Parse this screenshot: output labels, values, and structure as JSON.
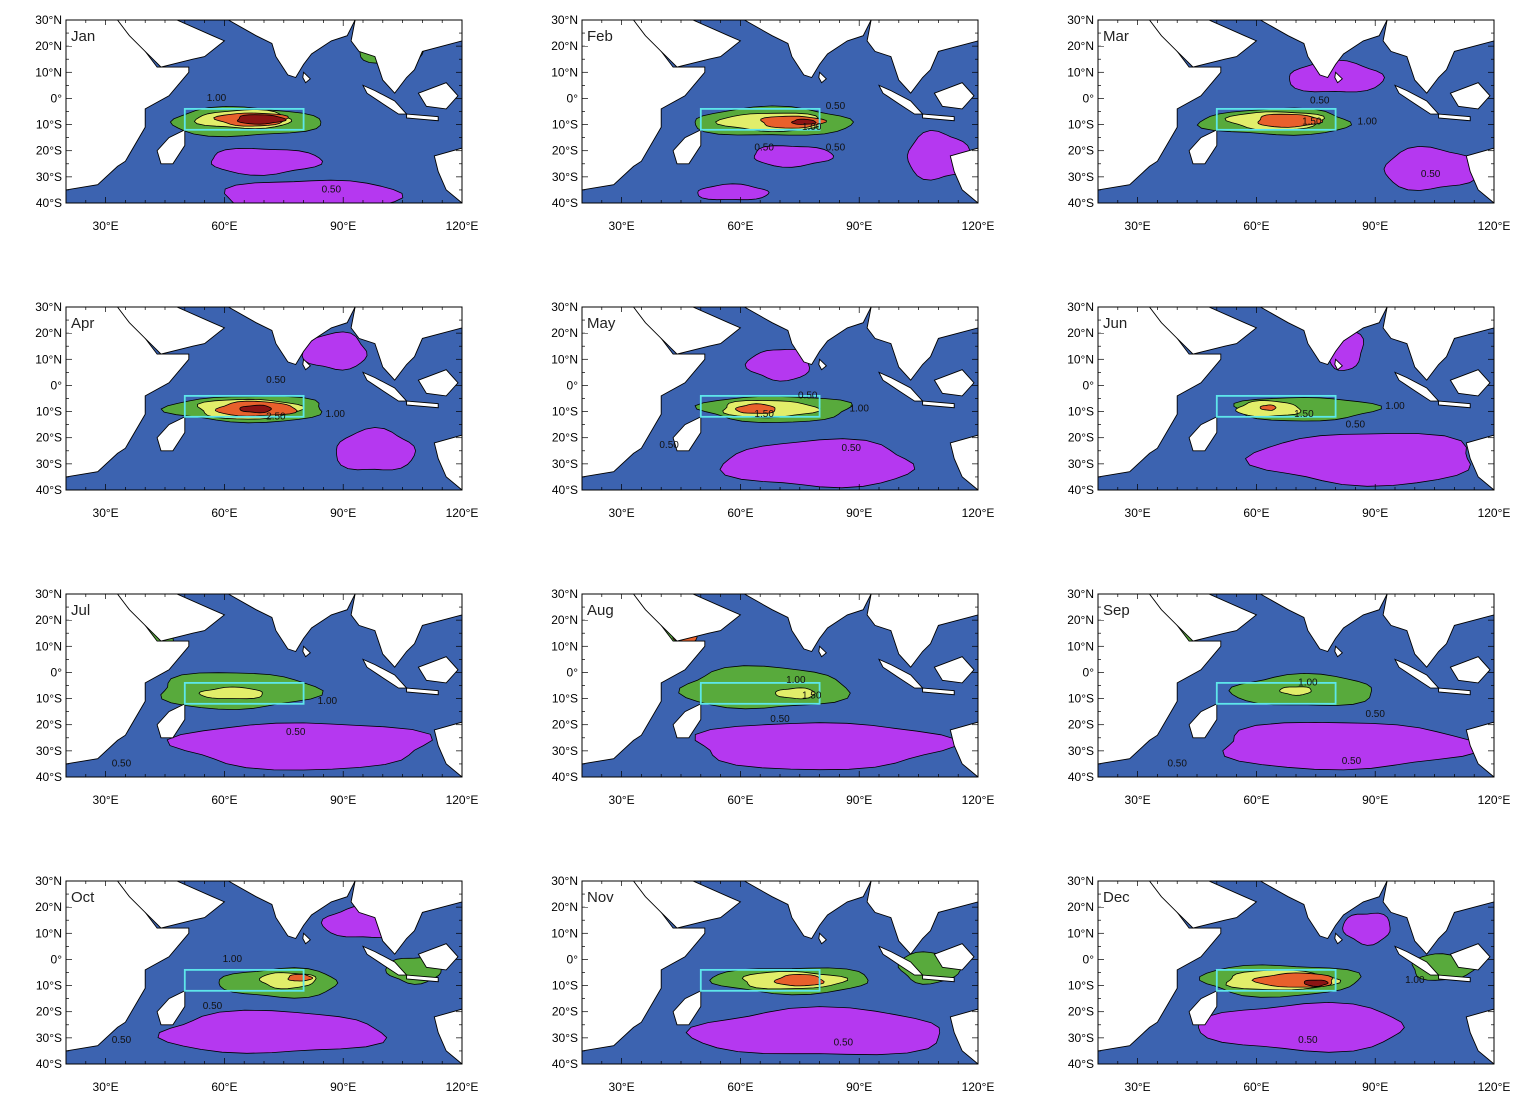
{
  "figure": {
    "lon_ticks": [
      "30°E",
      "60°E",
      "90°E",
      "120°E"
    ],
    "lat_ticks": [
      "30°N",
      "20°N",
      "10°N",
      "0°",
      "10°S",
      "20°S",
      "30°S",
      "40°S"
    ],
    "lon_range": [
      20,
      120
    ],
    "lat_range": [
      -40,
      30
    ],
    "box_region": {
      "lon": [
        50,
        80
      ],
      "lat": [
        -12,
        -4
      ]
    },
    "palette": {
      "land": "#ffffff",
      "lt_0_50": "#b538f0",
      "0_50_to_1_00": "#3c63b0",
      "1_00_to_1_50": "#58aa3c",
      "1_50_to_2_00": "#e2ee6a",
      "2_00_to_2_50": "#e8602c",
      "gt_2_50": "#8c1414",
      "box": "#5ee6ea"
    }
  },
  "panels": [
    {
      "month": "Jan",
      "labels": [
        "1.00",
        "0.50"
      ]
    },
    {
      "month": "Feb",
      "labels": [
        "0.50",
        "1.00",
        "0.50",
        "0.50"
      ]
    },
    {
      "month": "Mar",
      "labels": [
        "0.50",
        "1.50",
        "1.00",
        "0.50"
      ]
    },
    {
      "month": "Apr",
      "labels": [
        "0.50",
        "2.50",
        "1.00"
      ]
    },
    {
      "month": "May",
      "labels": [
        "0.50",
        "1.50",
        "1.00",
        "0.50",
        "0.50"
      ]
    },
    {
      "month": "Jun",
      "labels": [
        "1.50",
        "1.00",
        "0.50"
      ]
    },
    {
      "month": "Jul",
      "labels": [
        "1.00",
        "0.50",
        "0.50"
      ]
    },
    {
      "month": "Aug",
      "labels": [
        "1.00",
        "1.50",
        "0.50"
      ]
    },
    {
      "month": "Sep",
      "labels": [
        "1.00",
        "0.50",
        "0.50",
        "0.50"
      ]
    },
    {
      "month": "Oct",
      "labels": [
        "1.00",
        "0.50",
        "0.50"
      ]
    },
    {
      "month": "Nov",
      "labels": [
        "0.50"
      ]
    },
    {
      "month": "Dec",
      "labels": [
        "1.00",
        "0.50"
      ]
    }
  ]
}
